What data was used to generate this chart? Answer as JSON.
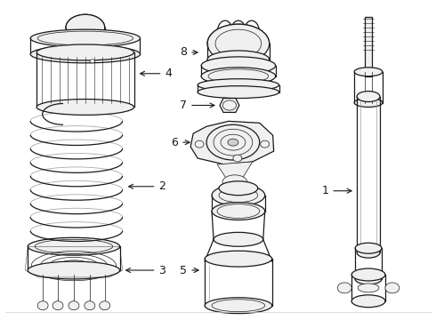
{
  "bg_color": "#ffffff",
  "line_color": "#1a1a1a",
  "lw": 0.9,
  "fig_w": 4.9,
  "fig_h": 3.6,
  "dpi": 100,
  "xlim": [
    0,
    490
  ],
  "ylim": [
    0,
    360
  ]
}
